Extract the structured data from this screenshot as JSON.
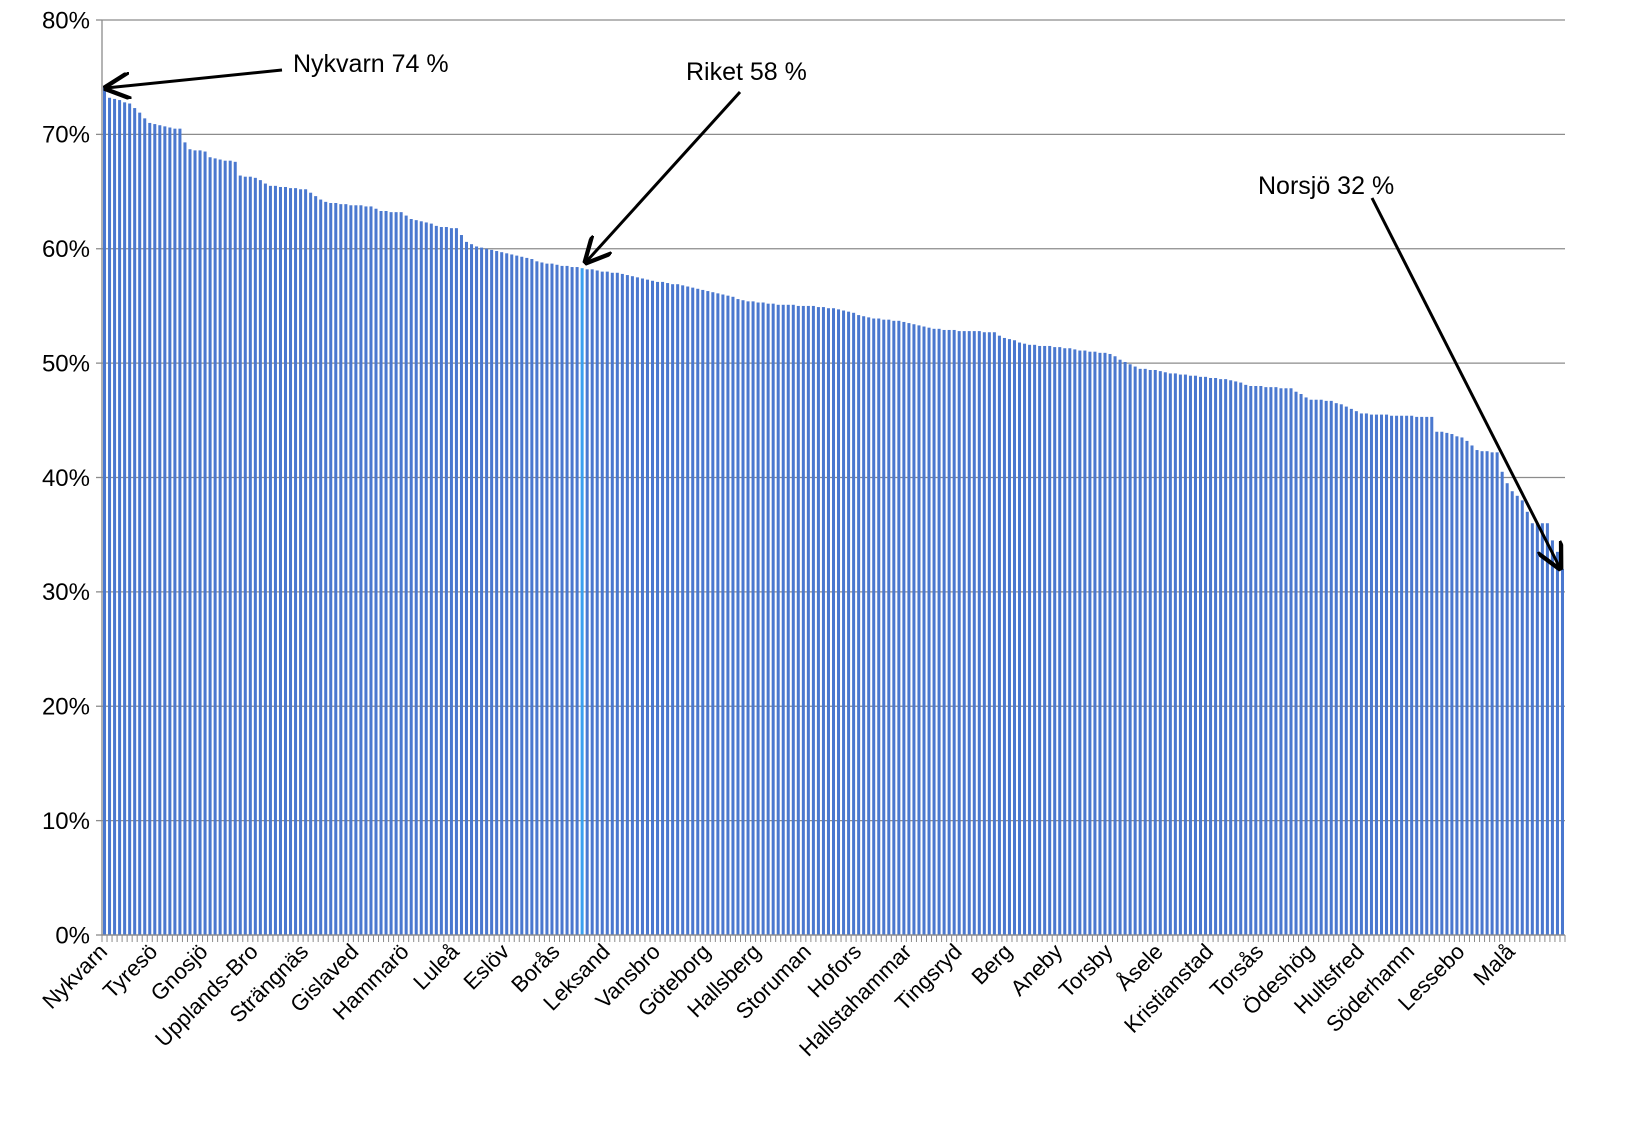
{
  "chart_data": {
    "type": "bar",
    "categories": [
      "Nykvarn",
      null,
      null,
      null,
      null,
      null,
      null,
      null,
      null,
      null,
      "Tyresö",
      null,
      null,
      null,
      null,
      null,
      null,
      null,
      null,
      null,
      "Gnosjö",
      null,
      null,
      null,
      null,
      null,
      null,
      null,
      null,
      null,
      "Upplands-Bro",
      null,
      null,
      null,
      null,
      null,
      null,
      null,
      null,
      null,
      "Strängnäs",
      null,
      null,
      null,
      null,
      null,
      null,
      null,
      null,
      null,
      "Gislaved",
      null,
      null,
      null,
      null,
      null,
      null,
      null,
      null,
      null,
      "Hammarö",
      null,
      null,
      null,
      null,
      null,
      null,
      null,
      null,
      null,
      "Luleå",
      null,
      null,
      null,
      null,
      null,
      null,
      null,
      null,
      null,
      "Eslöv",
      null,
      null,
      null,
      null,
      null,
      null,
      null,
      null,
      null,
      "Borås",
      null,
      null,
      null,
      null,
      null,
      null,
      null,
      null,
      null,
      "Leksand",
      null,
      null,
      null,
      null,
      null,
      null,
      null,
      null,
      null,
      "Vansbro",
      null,
      null,
      null,
      null,
      null,
      null,
      null,
      null,
      null,
      "Göteborg",
      null,
      null,
      null,
      null,
      null,
      null,
      null,
      null,
      null,
      "Hallsberg",
      null,
      null,
      null,
      null,
      null,
      null,
      null,
      null,
      null,
      "Storuman",
      null,
      null,
      null,
      null,
      null,
      null,
      null,
      null,
      null,
      "Hofors",
      null,
      null,
      null,
      null,
      null,
      null,
      null,
      null,
      null,
      "Hallstahammar",
      null,
      null,
      null,
      null,
      null,
      null,
      null,
      null,
      null,
      "Tingsryd",
      null,
      null,
      null,
      null,
      null,
      null,
      null,
      null,
      null,
      "Berg",
      null,
      null,
      null,
      null,
      null,
      null,
      null,
      null,
      null,
      "Aneby",
      null,
      null,
      null,
      null,
      null,
      null,
      null,
      null,
      null,
      "Torsby",
      null,
      null,
      null,
      null,
      null,
      null,
      null,
      null,
      null,
      "Åsele",
      null,
      null,
      null,
      null,
      null,
      null,
      null,
      null,
      null,
      "Kristianstad",
      null,
      null,
      null,
      null,
      null,
      null,
      null,
      null,
      null,
      "Torsås",
      null,
      null,
      null,
      null,
      null,
      null,
      null,
      null,
      null,
      "Ödeshög",
      null,
      null,
      null,
      null,
      null,
      null,
      null,
      null,
      null,
      "Hultsfred",
      null,
      null,
      null,
      null,
      null,
      null,
      null,
      null,
      null,
      "Söderhamn",
      null,
      null,
      null,
      null,
      null,
      null,
      null,
      null,
      null,
      "Lessebo",
      null,
      null,
      null,
      null,
      null,
      null,
      null,
      null,
      null,
      "Malå",
      null,
      null,
      null,
      null,
      null,
      null,
      null,
      null,
      null,
      null
    ],
    "values": [
      74.2,
      73.2,
      73.1,
      73.0,
      72.8,
      72.7,
      72.3,
      71.9,
      71.4,
      71.0,
      70.9,
      70.8,
      70.7,
      70.6,
      70.5,
      70.5,
      69.3,
      68.7,
      68.6,
      68.6,
      68.5,
      68.0,
      67.9,
      67.8,
      67.7,
      67.7,
      67.6,
      66.4,
      66.3,
      66.3,
      66.2,
      66.0,
      65.7,
      65.5,
      65.5,
      65.4,
      65.4,
      65.3,
      65.3,
      65.2,
      65.2,
      64.9,
      64.6,
      64.3,
      64.1,
      64.0,
      64.0,
      63.9,
      63.9,
      63.8,
      63.8,
      63.8,
      63.7,
      63.7,
      63.5,
      63.3,
      63.3,
      63.2,
      63.2,
      63.2,
      62.9,
      62.6,
      62.5,
      62.4,
      62.3,
      62.2,
      62.0,
      61.9,
      61.9,
      61.8,
      61.8,
      61.2,
      60.6,
      60.4,
      60.2,
      60.1,
      60.0,
      59.9,
      59.8,
      59.7,
      59.6,
      59.5,
      59.4,
      59.3,
      59.2,
      59.1,
      58.9,
      58.8,
      58.7,
      58.7,
      58.6,
      58.5,
      58.5,
      58.4,
      58.4,
      58.3,
      58.2,
      58.2,
      58.1,
      58.0,
      58.0,
      57.9,
      57.9,
      57.8,
      57.7,
      57.6,
      57.5,
      57.4,
      57.3,
      57.2,
      57.1,
      57.1,
      57.0,
      56.9,
      56.9,
      56.8,
      56.7,
      56.6,
      56.5,
      56.4,
      56.3,
      56.2,
      56.1,
      56.0,
      55.9,
      55.8,
      55.6,
      55.5,
      55.4,
      55.4,
      55.3,
      55.3,
      55.2,
      55.2,
      55.1,
      55.1,
      55.1,
      55.1,
      55.0,
      55.0,
      55.0,
      55.0,
      54.9,
      54.9,
      54.8,
      54.8,
      54.7,
      54.6,
      54.5,
      54.4,
      54.2,
      54.1,
      54.0,
      53.9,
      53.9,
      53.8,
      53.8,
      53.7,
      53.7,
      53.6,
      53.5,
      53.4,
      53.3,
      53.2,
      53.1,
      53.0,
      53.0,
      52.9,
      52.9,
      52.9,
      52.8,
      52.8,
      52.8,
      52.8,
      52.8,
      52.7,
      52.7,
      52.7,
      52.4,
      52.2,
      52.1,
      52.0,
      51.8,
      51.7,
      51.6,
      51.6,
      51.5,
      51.5,
      51.5,
      51.4,
      51.4,
      51.3,
      51.3,
      51.2,
      51.1,
      51.1,
      51.0,
      51.0,
      50.9,
      50.9,
      50.8,
      50.6,
      50.3,
      50.1,
      49.9,
      49.7,
      49.5,
      49.5,
      49.4,
      49.4,
      49.3,
      49.2,
      49.1,
      49.1,
      49.0,
      49.0,
      48.9,
      48.9,
      48.8,
      48.8,
      48.7,
      48.7,
      48.6,
      48.6,
      48.5,
      48.4,
      48.3,
      48.1,
      48.0,
      48.0,
      48.0,
      47.9,
      47.9,
      47.9,
      47.8,
      47.8,
      47.8,
      47.5,
      47.3,
      47.0,
      46.8,
      46.8,
      46.8,
      46.7,
      46.7,
      46.5,
      46.4,
      46.2,
      46.0,
      45.8,
      45.6,
      45.6,
      45.5,
      45.5,
      45.5,
      45.5,
      45.4,
      45.4,
      45.4,
      45.4,
      45.4,
      45.3,
      45.3,
      45.3,
      45.3,
      44.0,
      44.0,
      43.9,
      43.8,
      43.6,
      43.5,
      43.2,
      42.8,
      42.4,
      42.3,
      42.3,
      42.2,
      42.2,
      40.5,
      39.5,
      38.8,
      38.4,
      38.0,
      37.0,
      36.0,
      36.0,
      36.0,
      36.0,
      34.5,
      33.5,
      32.0
    ],
    "color": "#4a78cf",
    "highlight_index": 95,
    "highlight_color": "#3aa0f0",
    "ylim": [
      0,
      80
    ],
    "yticks": [
      {
        "value": 0,
        "label": "0%"
      },
      {
        "value": 10,
        "label": "10%"
      },
      {
        "value": 20,
        "label": "20%"
      },
      {
        "value": 30,
        "label": "30%"
      },
      {
        "value": 40,
        "label": "40%"
      },
      {
        "value": 50,
        "label": "50%"
      },
      {
        "value": 60,
        "label": "60%"
      },
      {
        "value": 70,
        "label": "70%"
      },
      {
        "value": 80,
        "label": "80%"
      }
    ],
    "grid": true,
    "annotations": [
      "Nykvarn 74 %",
      "Riket 58 %",
      "Norsjö 32 %"
    ]
  }
}
